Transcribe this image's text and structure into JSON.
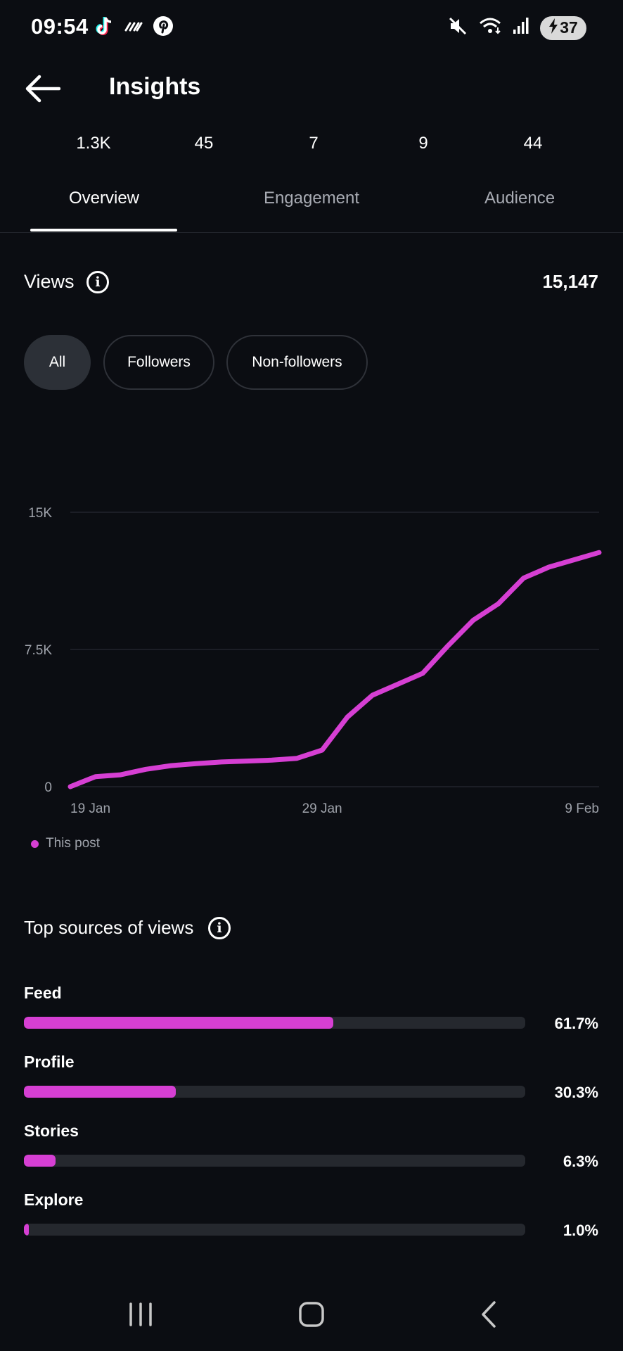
{
  "status_bar": {
    "time": "09:54",
    "left_icons": [
      "tiktok-icon",
      "signal-stripes-icon",
      "pinterest-icon"
    ],
    "right_icons": [
      "mute-icon",
      "wifi-icon",
      "cell-signal-icon"
    ],
    "battery": "37"
  },
  "header": {
    "title": "Insights"
  },
  "stats": [
    "1.3K",
    "45",
    "7",
    "9",
    "44"
  ],
  "tabs": [
    {
      "label": "Overview",
      "active": true
    },
    {
      "label": "Engagement",
      "active": false
    },
    {
      "label": "Audience",
      "active": false
    }
  ],
  "views": {
    "label": "Views",
    "total": "15,147"
  },
  "filters": [
    {
      "label": "All",
      "selected": true
    },
    {
      "label": "Followers",
      "selected": false
    },
    {
      "label": "Non-followers",
      "selected": false
    }
  ],
  "chart_data": {
    "type": "line",
    "x_tick_labels": [
      "19 Jan",
      "29 Jan",
      "9 Feb"
    ],
    "y_tick_labels": [
      "15K",
      "7.5K",
      "0"
    ],
    "ylim": [
      0,
      15000
    ],
    "grid": true,
    "legend_position": "bottom-left",
    "series": [
      {
        "name": "This post",
        "color": "#d63fd3",
        "x": [
          "19 Jan",
          "20 Jan",
          "21 Jan",
          "22 Jan",
          "23 Jan",
          "24 Jan",
          "25 Jan",
          "26 Jan",
          "27 Jan",
          "28 Jan",
          "29 Jan",
          "30 Jan",
          "31 Jan",
          "1 Feb",
          "2 Feb",
          "3 Feb",
          "4 Feb",
          "5 Feb",
          "6 Feb",
          "7 Feb",
          "8 Feb",
          "9 Feb"
        ],
        "values": [
          0,
          550,
          650,
          950,
          1150,
          1260,
          1350,
          1400,
          1450,
          1550,
          2000,
          3800,
          5000,
          5600,
          6200,
          7700,
          9100,
          10000,
          11400,
          12000,
          12400,
          12800
        ]
      }
    ]
  },
  "sources": {
    "title": "Top sources of views",
    "items": [
      {
        "label": "Feed",
        "value": "61.7%",
        "fraction": 0.617
      },
      {
        "label": "Profile",
        "value": "30.3%",
        "fraction": 0.303
      },
      {
        "label": "Stories",
        "value": "6.3%",
        "fraction": 0.063
      },
      {
        "label": "Explore",
        "value": "1.0%",
        "fraction": 0.01
      }
    ]
  },
  "nav_bar": {
    "icons": [
      "recent-apps-icon",
      "home-icon",
      "back-nav-icon"
    ]
  },
  "colors": {
    "accent": "#d63fd3",
    "background": "#0b0d12",
    "track": "#25282e",
    "muted_text": "#a8abb3"
  }
}
